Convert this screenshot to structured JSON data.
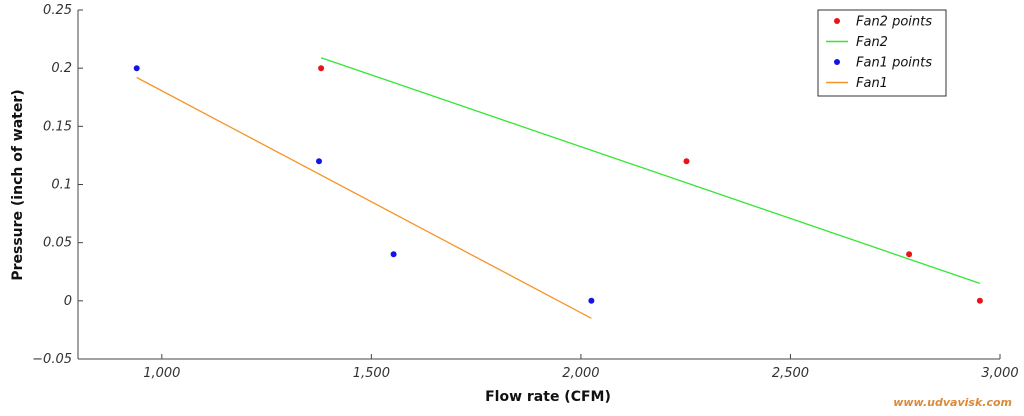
{
  "watermark": "www.udvavisk.com",
  "chart_data": {
    "type": "scatter",
    "title": "",
    "xlabel": "Flow rate (CFM)",
    "ylabel": "Pressure (inch of water)",
    "xlim": [
      800,
      3000
    ],
    "ylim": [
      -0.05,
      0.25
    ],
    "x_ticks": [
      1000,
      1500,
      2000,
      2500,
      3000
    ],
    "x_tick_labels": [
      "1,000",
      "1,500",
      "2,000",
      "2,500",
      "3,000"
    ],
    "y_ticks": [
      -0.05,
      0,
      0.05,
      0.1,
      0.15,
      0.2,
      0.25
    ],
    "y_tick_labels": [
      "−0.05",
      "0",
      "0.05",
      "0.1",
      "0.15",
      "0.2",
      "0.25"
    ],
    "grid": false,
    "legend_position": "top-right",
    "series": [
      {
        "name": "Fan2 points",
        "kind": "points",
        "color": "#e8141a",
        "points": [
          [
            1380,
            0.2
          ],
          [
            2252,
            0.12
          ],
          [
            2783,
            0.04
          ],
          [
            2952,
            0
          ]
        ]
      },
      {
        "name": "Fan2",
        "kind": "line",
        "color": "#33e633",
        "points": [
          [
            1380,
            0.209
          ],
          [
            2952,
            0.015
          ]
        ]
      },
      {
        "name": "Fan1 points",
        "kind": "points",
        "color": "#1414e8",
        "points": [
          [
            940,
            0.2
          ],
          [
            1375,
            0.12
          ],
          [
            1553,
            0.04
          ],
          [
            2025,
            0
          ]
        ]
      },
      {
        "name": "Fan1",
        "kind": "line",
        "color": "#f5952a",
        "points": [
          [
            940,
            0.192
          ],
          [
            2025,
            -0.015
          ]
        ]
      }
    ]
  }
}
